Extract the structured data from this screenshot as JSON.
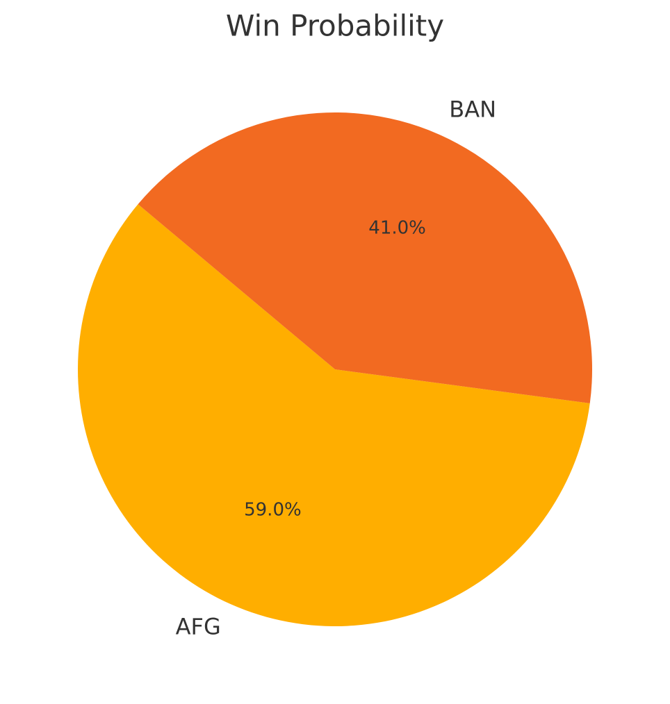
{
  "chart_data": {
    "type": "pie",
    "title": "Win Probability",
    "categories": [
      "AFG",
      "BAN"
    ],
    "values": [
      59.0,
      41.0
    ],
    "value_labels": [
      "59.0%",
      "41.0%"
    ],
    "colors": [
      "#ffae00",
      "#f26a21"
    ]
  }
}
